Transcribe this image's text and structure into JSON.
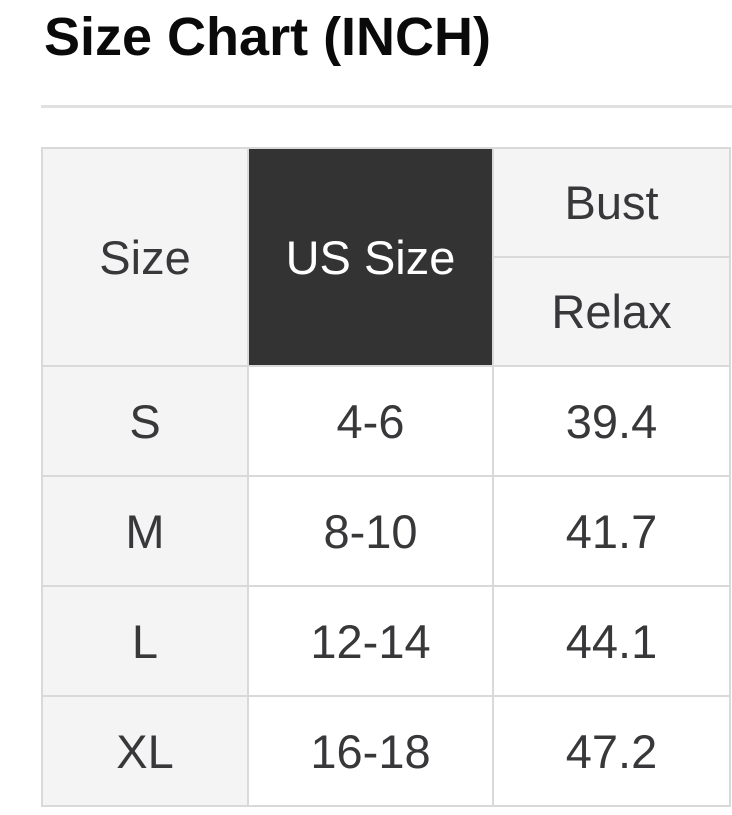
{
  "page": {
    "title": "Size Chart (INCH)"
  },
  "table": {
    "headers": {
      "size": "Size",
      "us_size": "US Size",
      "bust": "Bust",
      "relax": "Relax"
    },
    "rows": [
      {
        "size": "S",
        "us_size": "4-6",
        "bust_relax": "39.4"
      },
      {
        "size": "M",
        "us_size": "8-10",
        "bust_relax": "41.7"
      },
      {
        "size": "L",
        "us_size": "12-14",
        "bust_relax": "44.1"
      },
      {
        "size": "XL",
        "us_size": "16-18",
        "bust_relax": "47.2"
      }
    ]
  },
  "colors": {
    "dark_header_bg": "#333333",
    "dark_header_text": "#ffffff",
    "light_cell_bg": "#f4f4f5",
    "border": "#d9d9d9",
    "body_text": "#38383b",
    "title_text": "#0a0a0a",
    "divider": "#e1e1e1"
  }
}
